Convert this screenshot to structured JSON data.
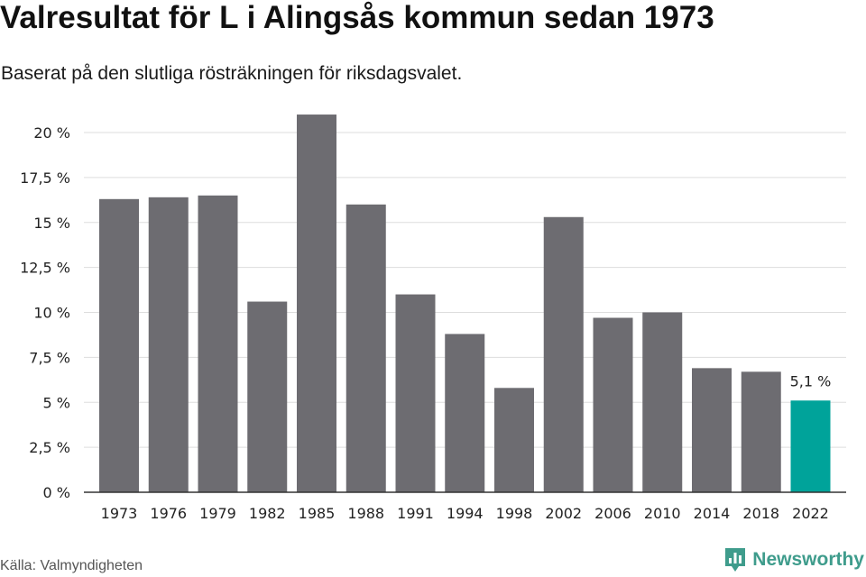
{
  "header": {
    "title": "Valresultat för L i Alingsås kommun sedan 1973",
    "subtitle": "Baserat på den slutliga rösträkningen för riksdagsvalet."
  },
  "footer": {
    "source": "Källa: Valmyndigheten",
    "brand": "Newsworthy",
    "brand_icon": "bar-chart-badge-icon"
  },
  "colors": {
    "bar": "#6d6c71",
    "highlight": "#00a39a",
    "grid": "#dddddd",
    "axis": "#333333",
    "brand": "#3f9c8c"
  },
  "chart_data": {
    "type": "bar",
    "title": "Valresultat för L i Alingsås kommun sedan 1973",
    "subtitle": "Baserat på den slutliga rösträkningen för riksdagsvalet.",
    "xlabel": "",
    "ylabel": "",
    "categories": [
      "1973",
      "1976",
      "1979",
      "1982",
      "1985",
      "1988",
      "1991",
      "1994",
      "1998",
      "2002",
      "2006",
      "2010",
      "2014",
      "2018",
      "2022"
    ],
    "values": [
      16.3,
      16.4,
      16.5,
      10.6,
      21.0,
      16.0,
      11.0,
      8.8,
      5.8,
      15.3,
      9.7,
      10.0,
      6.9,
      6.7,
      5.1
    ],
    "ylim": [
      0,
      21
    ],
    "yticks": [
      0,
      2.5,
      5,
      7.5,
      10,
      12.5,
      15,
      17.5,
      20
    ],
    "ytick_labels": [
      "0 %",
      "2,5 %",
      "5 %",
      "7,5 %",
      "10 %",
      "12,5 %",
      "15 %",
      "17,5 %",
      "20 %"
    ],
    "grid": true,
    "highlight_index": 14,
    "annotations": [
      {
        "category": "2022",
        "label": "5,1 %"
      }
    ]
  }
}
